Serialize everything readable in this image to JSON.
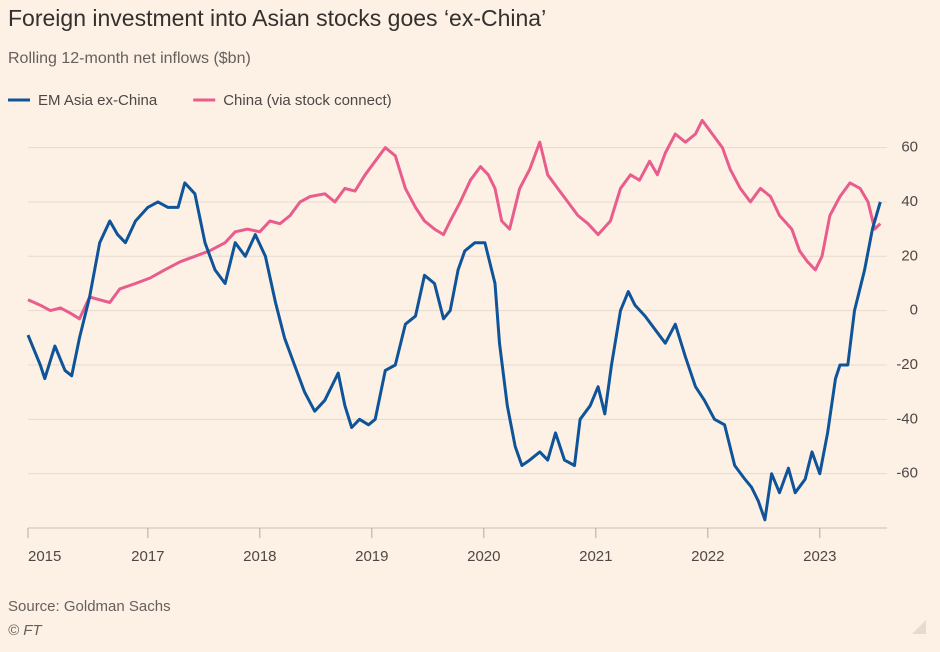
{
  "chart_data": {
    "type": "line",
    "title": "Foreign investment into Asian stocks goes ‘ex-China’",
    "subtitle": "Rolling 12-month net inflows ($bn)",
    "source": "Source: Goldman Sachs",
    "credit": "© FT",
    "xlim": [
      2015.93,
      2023.6
    ],
    "xticks": [
      {
        "value": 2015.93,
        "label": "2015"
      },
      2017,
      2018,
      2019,
      2020,
      2021,
      2022,
      2023
    ],
    "ylim": [
      -80,
      72
    ],
    "yticks": [
      -60,
      -40,
      -20,
      0,
      20,
      40,
      60
    ],
    "grid": true,
    "series": [
      {
        "name": "EM Asia ex-China",
        "color": "#0f5499",
        "x": [
          2015.93,
          2016.04,
          2016.08,
          2016.17,
          2016.26,
          2016.32,
          2016.39,
          2016.48,
          2016.57,
          2016.66,
          2016.73,
          2016.8,
          2016.89,
          2017.0,
          2017.09,
          2017.18,
          2017.27,
          2017.33,
          2017.42,
          2017.51,
          2017.6,
          2017.69,
          2017.78,
          2017.87,
          2017.96,
          2018.05,
          2018.14,
          2018.22,
          2018.31,
          2018.4,
          2018.49,
          2018.58,
          2018.7,
          2018.76,
          2018.82,
          2018.89,
          2018.97,
          2019.03,
          2019.12,
          2019.21,
          2019.3,
          2019.39,
          2019.47,
          2019.56,
          2019.64,
          2019.7,
          2019.77,
          2019.83,
          2019.92,
          2020.01,
          2020.1,
          2020.14,
          2020.21,
          2020.28,
          2020.34,
          2020.41,
          2020.5,
          2020.57,
          2020.64,
          2020.72,
          2020.81,
          2020.86,
          2020.95,
          2021.02,
          2021.08,
          2021.14,
          2021.22,
          2021.29,
          2021.35,
          2021.44,
          2021.53,
          2021.62,
          2021.71,
          2021.8,
          2021.89,
          2021.97,
          2022.06,
          2022.15,
          2022.24,
          2022.33,
          2022.39,
          2022.45,
          2022.51,
          2022.57,
          2022.64,
          2022.72,
          2022.78,
          2022.87,
          2022.93,
          2023.0,
          2023.07,
          2023.14,
          2023.18,
          2023.25,
          2023.31,
          2023.4,
          2023.47,
          2023.54
        ],
        "values": [
          -9,
          -20,
          -25,
          -13,
          -22,
          -24,
          -10,
          5,
          25,
          33,
          28,
          25,
          33,
          38,
          40,
          38,
          38,
          47,
          43,
          25,
          15,
          10,
          25,
          20,
          28,
          20,
          3,
          -10,
          -20,
          -30,
          -37,
          -33,
          -23,
          -35,
          -43,
          -40,
          -42,
          -40,
          -22,
          -20,
          -5,
          -2,
          13,
          10,
          -3,
          0,
          15,
          22,
          25,
          25,
          10,
          -12,
          -35,
          -50,
          -57,
          -55,
          -52,
          -55,
          -45,
          -55,
          -57,
          -40,
          -35,
          -28,
          -38,
          -20,
          0,
          7,
          2,
          -2,
          -7,
          -12,
          -5,
          -17,
          -28,
          -33,
          -40,
          -42,
          -57,
          -62,
          -65,
          -70,
          -77,
          -60,
          -67,
          -58,
          -67,
          -62,
          -52,
          -60,
          -45,
          -25,
          -20,
          -20,
          0,
          15,
          30,
          40
        ]
      },
      {
        "name": "China (via stock connect)",
        "color": "#e95d8c",
        "x": [
          2015.93,
          2016.04,
          2016.13,
          2016.22,
          2016.31,
          2016.39,
          2016.48,
          2016.57,
          2016.66,
          2016.75,
          2016.89,
          2017.02,
          2017.15,
          2017.29,
          2017.42,
          2017.55,
          2017.69,
          2017.78,
          2017.89,
          2018.0,
          2018.09,
          2018.18,
          2018.27,
          2018.36,
          2018.45,
          2018.58,
          2018.67,
          2018.76,
          2018.85,
          2018.94,
          2019.03,
          2019.12,
          2019.21,
          2019.3,
          2019.39,
          2019.47,
          2019.56,
          2019.64,
          2019.7,
          2019.79,
          2019.88,
          2019.97,
          2020.04,
          2020.1,
          2020.16,
          2020.23,
          2020.32,
          2020.41,
          2020.5,
          2020.57,
          2020.66,
          2020.75,
          2020.84,
          2020.93,
          2021.02,
          2021.13,
          2021.22,
          2021.31,
          2021.39,
          2021.48,
          2021.55,
          2021.62,
          2021.71,
          2021.8,
          2021.89,
          2021.95,
          2022.04,
          2022.13,
          2022.2,
          2022.29,
          2022.38,
          2022.47,
          2022.56,
          2022.64,
          2022.75,
          2022.82,
          2022.89,
          2022.96,
          2023.02,
          2023.09,
          2023.18,
          2023.27,
          2023.36,
          2023.43,
          2023.49,
          2023.54
        ],
        "values": [
          4,
          2,
          0,
          1,
          -1,
          -3,
          5,
          4,
          3,
          8,
          10,
          12,
          15,
          18,
          20,
          22,
          25,
          29,
          30,
          29,
          33,
          32,
          35,
          40,
          42,
          43,
          40,
          45,
          44,
          50,
          55,
          60,
          57,
          45,
          38,
          33,
          30,
          28,
          33,
          40,
          48,
          53,
          50,
          45,
          33,
          30,
          45,
          52,
          62,
          50,
          45,
          40,
          35,
          32,
          28,
          33,
          45,
          50,
          48,
          55,
          50,
          58,
          65,
          62,
          65,
          70,
          65,
          60,
          52,
          45,
          40,
          45,
          42,
          35,
          30,
          22,
          18,
          15,
          20,
          35,
          42,
          47,
          45,
          40,
          30,
          32
        ]
      }
    ]
  }
}
